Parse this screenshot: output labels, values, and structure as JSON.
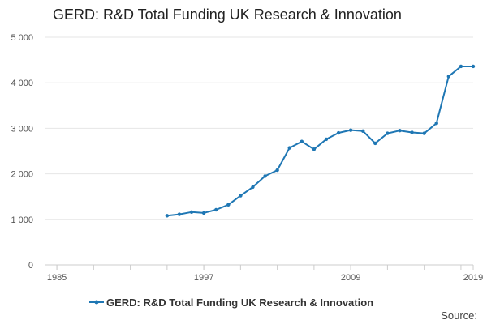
{
  "chart_data": {
    "type": "line",
    "title": "GERD: R&D Total Funding UK Research & Innovation",
    "xlabel": "",
    "ylabel": "",
    "xlim": [
      1984,
      2019
    ],
    "ylim": [
      0,
      5000
    ],
    "x_tick_labels": [
      "1985",
      "1997",
      "2009",
      "2019"
    ],
    "y_tick_labels": [
      "0",
      "1 000",
      "2 000",
      "3 000",
      "4 000",
      "5 000"
    ],
    "grid": true,
    "legend_position": "bottom",
    "series": [
      {
        "name": "GERD: R&D Total Funding UK Research & Innovation",
        "color": "#1f77b4",
        "x": [
          1994,
          1995,
          1996,
          1997,
          1998,
          1999,
          2000,
          2001,
          2002,
          2003,
          2004,
          2005,
          2006,
          2007,
          2008,
          2009,
          2010,
          2011,
          2012,
          2013,
          2014,
          2015,
          2016,
          2017,
          2018,
          2019
        ],
        "y": [
          1080,
          1110,
          1160,
          1140,
          1210,
          1320,
          1520,
          1710,
          1950,
          2080,
          2570,
          2710,
          2540,
          2760,
          2900,
          2960,
          2940,
          2670,
          2890,
          2950,
          2910,
          2890,
          3110,
          4140,
          4360,
          4360
        ]
      }
    ]
  },
  "footer": {
    "source_label": "Source:"
  }
}
